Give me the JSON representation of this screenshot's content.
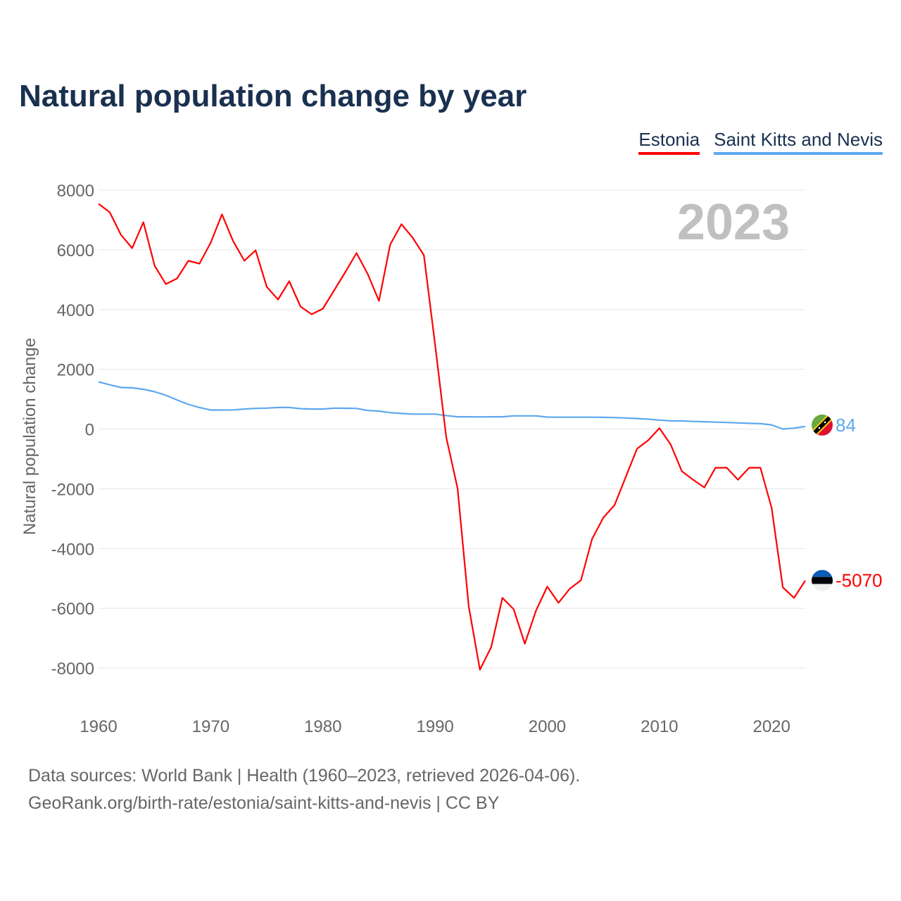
{
  "title": "Natural population change by year",
  "footer": {
    "line1": "Data sources: World Bank | Health (1960–2023, retrieved 2026-04-06).",
    "line2": "GeoRank.org/birth-rate/estonia/saint-kitts-and-nevis | CC BY"
  },
  "chart_data": {
    "type": "line",
    "title": "Natural population change by year",
    "xlabel": "",
    "ylabel": "Natural population change",
    "xlim": [
      1960,
      2023
    ],
    "ylim": [
      -8000,
      8000
    ],
    "yticks": [
      8000,
      6000,
      4000,
      2000,
      0,
      -2000,
      -4000,
      -6000,
      -8000
    ],
    "xticks": [
      1960,
      1970,
      1980,
      1990,
      2000,
      2010,
      2020
    ],
    "grid": true,
    "legend": "top-right",
    "year_label": "2023",
    "x": [
      1960,
      1961,
      1962,
      1963,
      1964,
      1965,
      1966,
      1967,
      1968,
      1969,
      1970,
      1971,
      1972,
      1973,
      1974,
      1975,
      1976,
      1977,
      1978,
      1979,
      1980,
      1981,
      1982,
      1983,
      1984,
      1985,
      1986,
      1987,
      1988,
      1989,
      1990,
      1991,
      1992,
      1993,
      1994,
      1995,
      1996,
      1997,
      1998,
      1999,
      2000,
      2001,
      2002,
      2003,
      2004,
      2005,
      2006,
      2007,
      2008,
      2009,
      2010,
      2011,
      2012,
      2013,
      2014,
      2015,
      2016,
      2017,
      2018,
      2019,
      2020,
      2021,
      2022,
      2023
    ],
    "series": [
      {
        "name": "Estonia",
        "color": "#ff0000",
        "end_label": "-5070",
        "flag": "estonia-flag",
        "values": [
          7540,
          7256,
          6500,
          6055,
          6926,
          5466,
          4853,
          5042,
          5631,
          5537,
          6243,
          7186,
          6290,
          5631,
          5984,
          4759,
          4335,
          4948,
          4100,
          3840,
          4029,
          4641,
          5254,
          5890,
          5183,
          4288,
          6173,
          6856,
          6408,
          5820,
          2827,
          -283,
          -1979,
          -5937,
          -8057,
          -7303,
          -5654,
          -6031,
          -7186,
          -6078,
          -5277,
          -5819,
          -5348,
          -5065,
          -3675,
          -2968,
          -2544,
          -1602,
          -660,
          -377,
          30,
          -518,
          -1414,
          -1696,
          -1955,
          -1296,
          -1296,
          -1696,
          -1296,
          -1296,
          -2638,
          -5300,
          -5654,
          -5070
        ]
      },
      {
        "name": "Saint Kitts and Nevis",
        "color": "#5ea8ee",
        "end_label": "84",
        "flag": "saint-kitts-and-nevis-flag",
        "values": [
          1578,
          1480,
          1390,
          1380,
          1330,
          1250,
          1130,
          970,
          825,
          720,
          636,
          636,
          640,
          670,
          690,
          700,
          720,
          720,
          680,
          670,
          670,
          700,
          695,
          690,
          620,
          600,
          550,
          520,
          500,
          500,
          500,
          450,
          410,
          410,
          405,
          410,
          410,
          440,
          440,
          440,
          400,
          395,
          395,
          395,
          395,
          390,
          385,
          370,
          350,
          330,
          300,
          270,
          270,
          255,
          245,
          230,
          220,
          205,
          190,
          180,
          140,
          0,
          30,
          84
        ]
      }
    ]
  }
}
